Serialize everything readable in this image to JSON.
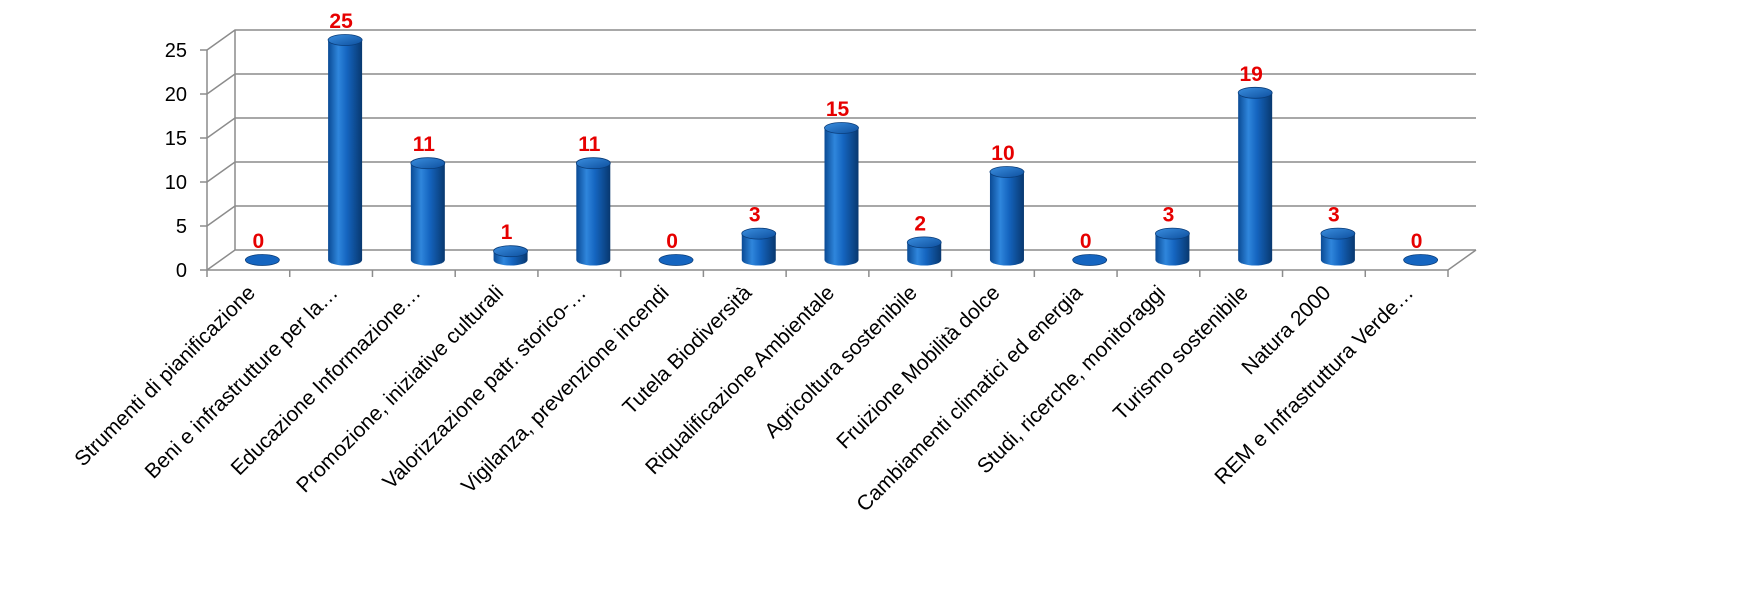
{
  "chart_data": {
    "type": "bar",
    "categories": [
      "Strumenti di pianificazione",
      "Beni e infrastrutture per la…",
      "Educazione Informazione…",
      "Promozione, iniziative culturali",
      "Valorizzazione patr. storico-…",
      "Vigilanza, prevenzione incendi",
      "Tutela Biodiversità",
      "Riqualificazione Ambientale",
      "Agricoltura sostenibile",
      "Fruizione Mobilità dolce",
      "Cambiamenti climatici ed energia",
      "Studi, ricerche, monitoraggi",
      "Turismo sostenibile",
      "Natura 2000",
      "REM e Infrastruttura Verde…"
    ],
    "values": [
      0,
      25,
      11,
      1,
      11,
      0,
      3,
      15,
      2,
      10,
      0,
      3,
      19,
      3,
      0
    ],
    "data_labels": [
      "0",
      "25",
      "11",
      "1",
      "11",
      "0",
      "3",
      "15",
      "2",
      "10",
      "0",
      "3",
      "19",
      "3",
      "0"
    ],
    "y_ticks": [
      "0",
      "5",
      "10",
      "15",
      "20",
      "25"
    ],
    "ylim": [
      0,
      25
    ],
    "bar_style": "3d-cylinder",
    "grid": true,
    "legend": "none",
    "colors": {
      "bar": "#1565c0",
      "bar_light": "#4f9be8",
      "bar_dark": "#0a3d7a",
      "data_label": "#e60000",
      "grid": "#8c8c8c"
    }
  }
}
